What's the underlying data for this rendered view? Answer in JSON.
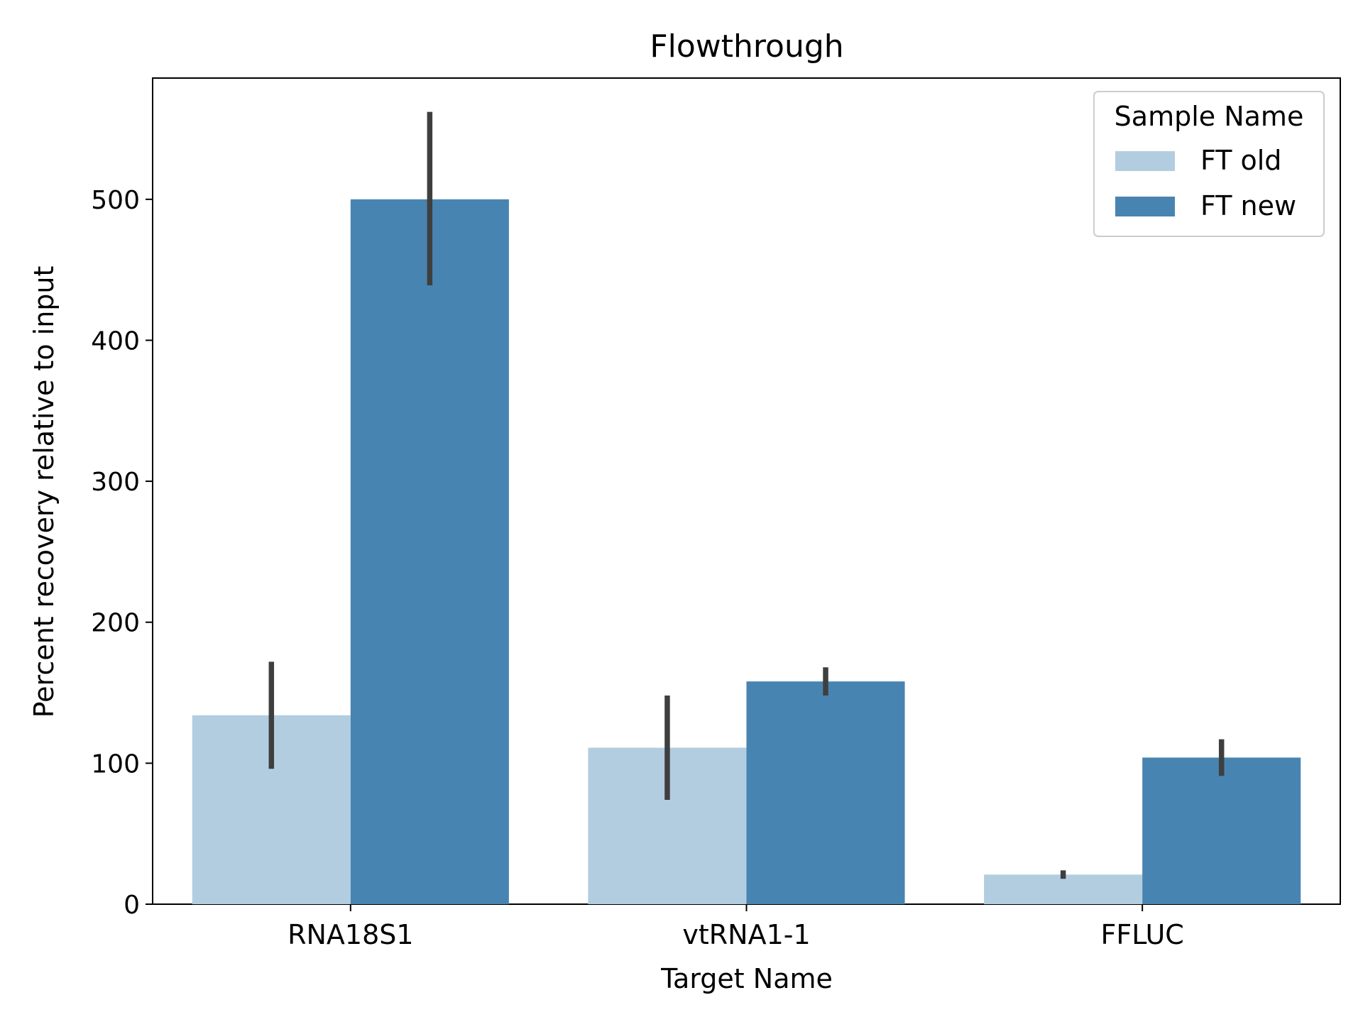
{
  "chart_data": {
    "type": "bar",
    "title": "Flowthrough",
    "xlabel": "Target Name",
    "ylabel": "Percent recovery relative to input",
    "categories": [
      "RNA18S1",
      "vtRNA1-1",
      "FFLUC"
    ],
    "ylim": [
      0,
      586
    ],
    "yticks": [
      0,
      100,
      200,
      300,
      400,
      500
    ],
    "grid": false,
    "legend": {
      "title": "Sample Name",
      "placement": "top-right"
    },
    "series": [
      {
        "name": "FT old",
        "color": "#b3cde0",
        "values": [
          134,
          111,
          21
        ],
        "error_low": [
          96,
          74,
          18
        ],
        "error_high": [
          172,
          148,
          24
        ]
      },
      {
        "name": "FT new",
        "color": "#4884b1",
        "values": [
          500,
          158,
          104
        ],
        "error_low": [
          439,
          148,
          91
        ],
        "error_high": [
          562,
          168,
          117
        ]
      }
    ],
    "error_color": "#3f3f3f"
  }
}
